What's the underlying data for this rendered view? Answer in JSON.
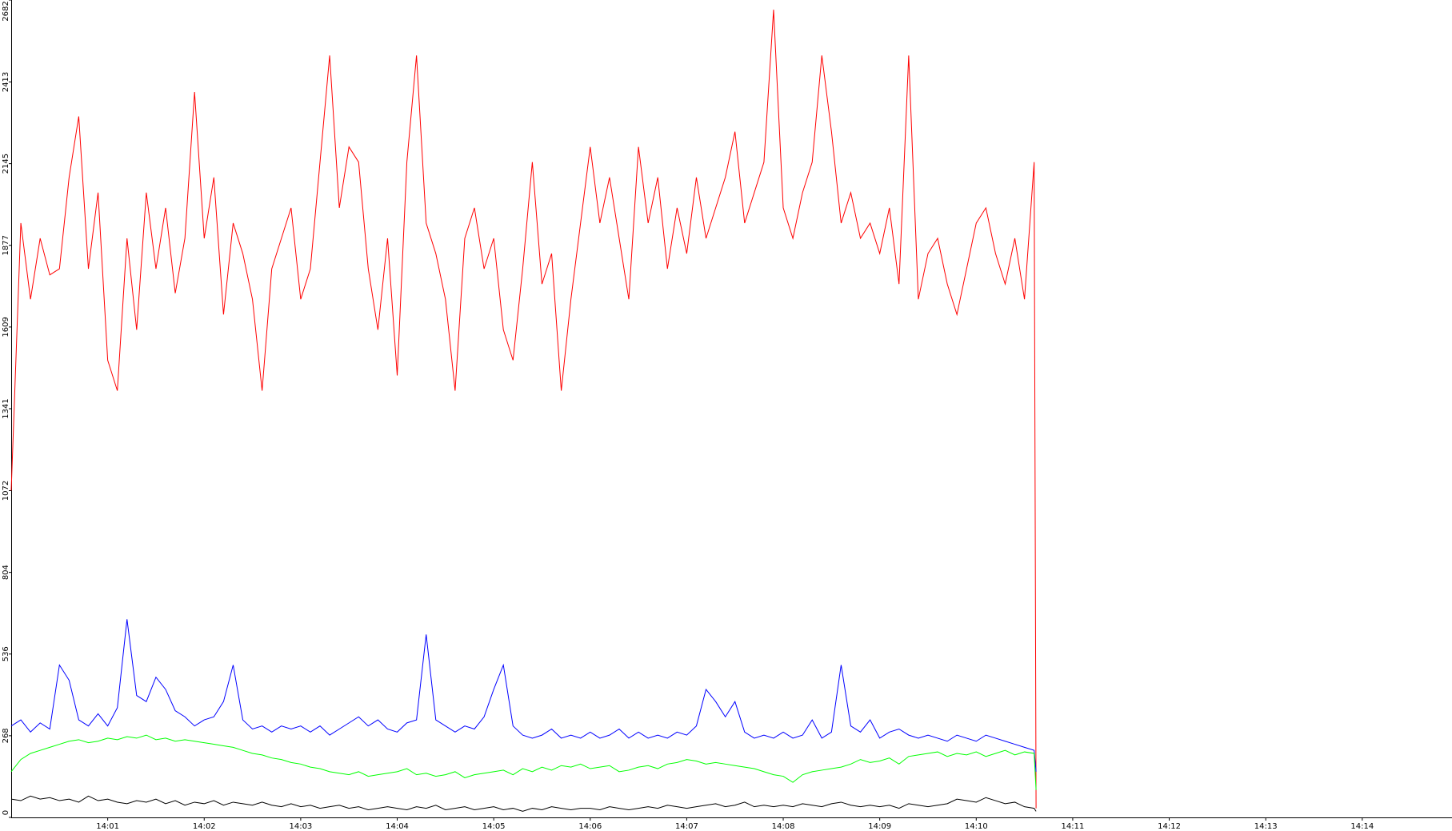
{
  "chart_data": {
    "type": "line",
    "x": [
      840.0,
      840.1,
      840.2,
      840.3,
      840.4,
      840.5,
      840.6,
      840.7,
      840.8,
      840.9,
      841.0,
      841.1,
      841.2,
      841.3,
      841.4,
      841.5,
      841.6,
      841.7,
      841.8,
      841.9,
      842.0,
      842.1,
      842.2,
      842.3,
      842.4,
      842.5,
      842.6,
      842.7,
      842.8,
      842.9,
      843.0,
      843.1,
      843.2,
      843.3,
      843.4,
      843.5,
      843.6,
      843.7,
      843.8,
      843.9,
      844.0,
      844.1,
      844.2,
      844.3,
      844.4,
      844.5,
      844.6,
      844.7,
      844.8,
      844.9,
      845.0,
      845.1,
      845.2,
      845.3,
      845.4,
      845.5,
      845.6,
      845.7,
      845.8,
      845.9,
      846.0,
      846.1,
      846.2,
      846.3,
      846.4,
      846.5,
      846.6,
      846.7,
      846.8,
      846.9,
      847.0,
      847.1,
      847.2,
      847.3,
      847.4,
      847.5,
      847.6,
      847.7,
      847.8,
      847.9,
      848.0,
      848.1,
      848.2,
      848.3,
      848.4,
      848.5,
      848.6,
      848.7,
      848.8,
      848.9,
      849.0,
      849.1,
      849.2,
      849.3,
      849.4,
      849.5,
      849.6,
      849.7,
      849.8,
      849.9,
      850.0,
      850.1,
      850.2,
      850.3,
      850.4,
      850.5,
      850.6,
      850.62
    ],
    "series": [
      {
        "color": "#ff0000",
        "values": [
          1072,
          1950,
          1700,
          1900,
          1780,
          1800,
          2100,
          2300,
          1800,
          2050,
          1500,
          1400,
          1900,
          1600,
          2050,
          1800,
          2000,
          1720,
          1900,
          2380,
          1900,
          2100,
          1650,
          1950,
          1850,
          1700,
          1400,
          1800,
          1900,
          2000,
          1700,
          1800,
          2150,
          2500,
          2000,
          2200,
          2150,
          1800,
          1600,
          1900,
          1450,
          2150,
          2500,
          1950,
          1850,
          1700,
          1400,
          1900,
          2000,
          1800,
          1900,
          1600,
          1500,
          1800,
          2150,
          1750,
          1850,
          1400,
          1700,
          1950,
          2200,
          1950,
          2100,
          1900,
          1700,
          2200,
          1950,
          2100,
          1800,
          2000,
          1850,
          2100,
          1900,
          2000,
          2100,
          2250,
          1950,
          2050,
          2150,
          2650,
          2000,
          1900,
          2050,
          2150,
          2500,
          2250,
          1950,
          2050,
          1900,
          1950,
          1850,
          2000,
          1750,
          2500,
          1700,
          1850,
          1900,
          1750,
          1650,
          1800,
          1950,
          2000,
          1850,
          1750,
          1900,
          1700,
          2150,
          30
        ]
      },
      {
        "color": "#0000ff",
        "values": [
          300,
          320,
          280,
          310,
          290,
          500,
          450,
          320,
          300,
          340,
          300,
          360,
          650,
          400,
          380,
          460,
          420,
          350,
          330,
          300,
          320,
          330,
          380,
          500,
          320,
          290,
          300,
          280,
          300,
          290,
          300,
          280,
          300,
          270,
          290,
          310,
          330,
          300,
          320,
          290,
          280,
          310,
          320,
          600,
          320,
          300,
          280,
          300,
          290,
          330,
          420,
          500,
          300,
          270,
          260,
          270,
          290,
          260,
          270,
          260,
          280,
          260,
          270,
          290,
          260,
          280,
          260,
          270,
          260,
          280,
          270,
          300,
          420,
          380,
          330,
          380,
          280,
          260,
          270,
          260,
          280,
          260,
          270,
          320,
          260,
          280,
          500,
          300,
          280,
          320,
          260,
          280,
          290,
          270,
          260,
          270,
          260,
          250,
          270,
          260,
          250,
          270,
          260,
          250,
          240,
          230,
          220,
          150
        ]
      },
      {
        "color": "#00ff00",
        "values": [
          150,
          190,
          210,
          220,
          230,
          240,
          250,
          255,
          245,
          250,
          260,
          255,
          265,
          260,
          270,
          255,
          260,
          250,
          255,
          250,
          245,
          240,
          235,
          230,
          220,
          210,
          205,
          195,
          190,
          180,
          175,
          165,
          160,
          150,
          145,
          140,
          150,
          135,
          140,
          145,
          150,
          160,
          140,
          145,
          135,
          140,
          150,
          130,
          140,
          145,
          150,
          155,
          140,
          160,
          150,
          165,
          155,
          170,
          165,
          175,
          160,
          165,
          170,
          150,
          155,
          165,
          170,
          160,
          175,
          180,
          190,
          185,
          175,
          180,
          175,
          170,
          165,
          160,
          150,
          140,
          135,
          115,
          140,
          150,
          155,
          160,
          165,
          175,
          190,
          180,
          185,
          195,
          175,
          200,
          205,
          210,
          215,
          200,
          210,
          205,
          215,
          200,
          210,
          220,
          205,
          215,
          210,
          90
        ]
      },
      {
        "color": "#000000",
        "values": [
          60,
          55,
          70,
          60,
          65,
          55,
          60,
          50,
          70,
          55,
          60,
          50,
          45,
          55,
          50,
          60,
          45,
          55,
          40,
          50,
          45,
          55,
          40,
          50,
          45,
          40,
          50,
          40,
          35,
          45,
          35,
          40,
          30,
          35,
          40,
          30,
          35,
          25,
          30,
          35,
          30,
          25,
          35,
          30,
          40,
          25,
          30,
          35,
          25,
          30,
          35,
          25,
          30,
          20,
          30,
          25,
          35,
          30,
          25,
          30,
          30,
          25,
          35,
          30,
          25,
          30,
          35,
          30,
          40,
          35,
          30,
          35,
          40,
          45,
          35,
          40,
          50,
          35,
          40,
          35,
          40,
          35,
          45,
          40,
          35,
          45,
          50,
          40,
          35,
          40,
          35,
          40,
          30,
          45,
          40,
          35,
          40,
          45,
          60,
          55,
          50,
          65,
          55,
          45,
          50,
          35,
          30,
          20
        ]
      }
    ],
    "xlim": [
      840,
      854.93
    ],
    "ylim": [
      0,
      2682
    ],
    "xticks": [
      {
        "value": 841,
        "label": "14:01"
      },
      {
        "value": 842,
        "label": "14:02"
      },
      {
        "value": 843,
        "label": "14:03"
      },
      {
        "value": 844,
        "label": "14:04"
      },
      {
        "value": 845,
        "label": "14:05"
      },
      {
        "value": 846,
        "label": "14:06"
      },
      {
        "value": 847,
        "label": "14:07"
      },
      {
        "value": 848,
        "label": "14:08"
      },
      {
        "value": 849,
        "label": "14:09"
      },
      {
        "value": 850,
        "label": "14:10"
      },
      {
        "value": 851,
        "label": "14:11"
      },
      {
        "value": 852,
        "label": "14:12"
      },
      {
        "value": 853,
        "label": "14:13"
      },
      {
        "value": 854,
        "label": "14:14"
      }
    ],
    "yticks": [
      0,
      268,
      536,
      804,
      1072,
      1341,
      1609,
      1877,
      2145,
      2413,
      2682
    ],
    "grid": false
  }
}
